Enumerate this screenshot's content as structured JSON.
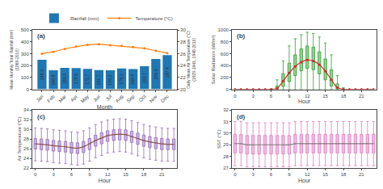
{
  "chart_data": [
    {
      "type": "bar",
      "xlabel": "Month",
      "ylabel": "Mean Monthly Total Rainfall (mm)\n(1869-2010)",
      "y2label": "Daily Mean Air Temperature (°C)\n(1929-1941, 1948-2010)",
      "annotations": [
        {
          "text": "(a)"
        }
      ],
      "categories": [
        "Jan",
        "Feb",
        "Mar",
        "Apr",
        "May",
        "Jun",
        "Jul",
        "Aug",
        "Sep",
        "Oct",
        "Nov",
        "Dec"
      ],
      "series": [
        {
          "name": "Rainfall (mm)",
          "type": "bar",
          "data_labels": true,
          "values": [
            248.3,
            160.8,
            180.3,
            178.6,
            171.7,
            161.7,
            159.3,
            176.1,
            169.4,
            193.7,
            255.9,
            287.4
          ]
        },
        {
          "name": "Temperature (°C)",
          "type": "line",
          "marker": "circle",
          "axis": "y2",
          "values": [
            26.0,
            26.3,
            26.8,
            27.2,
            27.5,
            27.6,
            27.4,
            27.3,
            27.1,
            26.9,
            26.5,
            26.1
          ]
        }
      ],
      "ylim": [
        0,
        500
      ],
      "yticks": [
        0,
        100,
        200,
        300,
        400,
        500
      ],
      "y2lim": [
        20,
        30
      ],
      "y2ticks": [
        20,
        22,
        24,
        26,
        28,
        30
      ],
      "grid": false,
      "legend": "upper right"
    },
    {
      "type": "box",
      "xlabel": "Hour",
      "ylabel": "Solar Radiation (W/m²)",
      "annotations": [
        {
          "text": "(b)"
        }
      ],
      "x": [
        0,
        1,
        2,
        3,
        4,
        5,
        6,
        7,
        8,
        9,
        10,
        11,
        12,
        13,
        14,
        15,
        16,
        17,
        18,
        19,
        20,
        21,
        22,
        23
      ],
      "series": [
        {
          "type": "box",
          "median": [
            0,
            0,
            0,
            0,
            0,
            0,
            0,
            15,
            130,
            270,
            380,
            450,
            490,
            470,
            410,
            300,
            150,
            20,
            0,
            0,
            0,
            0,
            0,
            0
          ],
          "q1": [
            0,
            0,
            0,
            0,
            0,
            0,
            0,
            2,
            50,
            130,
            230,
            310,
            350,
            330,
            260,
            160,
            55,
            5,
            0,
            0,
            0,
            0,
            0,
            0
          ],
          "q3": [
            0,
            0,
            0,
            0,
            0,
            0,
            0,
            55,
            260,
            440,
            580,
            680,
            730,
            710,
            630,
            510,
            330,
            90,
            3,
            0,
            0,
            0,
            0,
            0
          ],
          "whislo": [
            0,
            0,
            0,
            0,
            0,
            0,
            0,
            0,
            0,
            0,
            0,
            0,
            0,
            0,
            0,
            0,
            0,
            0,
            0,
            0,
            0,
            0,
            0,
            0
          ],
          "whishi": [
            0,
            0,
            0,
            0,
            0,
            0,
            3,
            160,
            480,
            730,
            850,
            920,
            960,
            940,
            880,
            780,
            580,
            230,
            25,
            0,
            0,
            0,
            0,
            0
          ]
        },
        {
          "type": "line",
          "marker": "circle",
          "values": [
            0,
            0,
            0,
            0,
            0,
            0,
            1,
            18,
            140,
            275,
            385,
            455,
            495,
            475,
            415,
            305,
            160,
            28,
            1,
            0,
            0,
            0,
            0,
            0
          ]
        }
      ],
      "xlim": [
        -0.5,
        23.5
      ],
      "xticks": [
        0,
        3,
        6,
        9,
        12,
        15,
        18,
        21
      ],
      "ylim": [
        0,
        1000
      ],
      "yticks": [
        0,
        200,
        400,
        600,
        800,
        1000
      ],
      "grid": false
    },
    {
      "type": "box",
      "xlabel": "Hour",
      "ylabel": "Air Temperature (°C)",
      "annotations": [
        {
          "text": "(c)"
        }
      ],
      "x": [
        0,
        1,
        2,
        3,
        4,
        5,
        6,
        7,
        8,
        9,
        10,
        11,
        12,
        13,
        14,
        15,
        16,
        17,
        18,
        19,
        20,
        21,
        22,
        23
      ],
      "series": [
        {
          "type": "box",
          "median": [
            27.0,
            26.9,
            26.8,
            26.6,
            26.5,
            26.4,
            26.2,
            26.1,
            26.4,
            27.0,
            27.7,
            28.2,
            28.7,
            28.9,
            29.0,
            28.9,
            28.5,
            28.1,
            27.7,
            27.4,
            27.2,
            27.0,
            26.9,
            26.9
          ],
          "q1": [
            25.9,
            25.8,
            25.7,
            25.5,
            25.4,
            25.3,
            25.1,
            25.0,
            25.2,
            25.8,
            26.5,
            27.0,
            27.5,
            27.7,
            27.8,
            27.7,
            27.3,
            26.9,
            26.5,
            26.2,
            26.0,
            25.8,
            25.8,
            25.8
          ],
          "q3": [
            28.1,
            28.0,
            27.9,
            27.7,
            27.6,
            27.5,
            27.3,
            27.2,
            27.5,
            28.1,
            28.8,
            29.3,
            29.7,
            29.9,
            30.0,
            29.9,
            29.6,
            29.2,
            28.8,
            28.5,
            28.3,
            28.1,
            28.0,
            28.0
          ],
          "whislo": [
            23.5,
            23.4,
            23.3,
            23.1,
            23.0,
            22.9,
            22.7,
            22.6,
            22.8,
            23.4,
            24.1,
            24.6,
            25.1,
            25.3,
            25.4,
            25.3,
            24.9,
            24.5,
            24.1,
            23.8,
            23.6,
            23.4,
            23.4,
            23.4
          ],
          "whishi": [
            30.3,
            30.2,
            30.1,
            29.9,
            29.8,
            29.7,
            29.5,
            29.4,
            29.7,
            30.3,
            31.0,
            31.5,
            31.9,
            32.1,
            32.2,
            32.1,
            31.8,
            31.4,
            31.0,
            30.7,
            30.5,
            30.3,
            30.2,
            30.2
          ]
        },
        {
          "type": "line",
          "values": [
            27.0,
            26.9,
            26.8,
            26.6,
            26.5,
            26.4,
            26.2,
            26.1,
            26.4,
            27.0,
            27.7,
            28.2,
            28.7,
            28.9,
            29.0,
            28.9,
            28.5,
            28.1,
            27.7,
            27.4,
            27.2,
            27.0,
            26.9,
            26.9
          ]
        }
      ],
      "xlim": [
        -0.5,
        23.5
      ],
      "xticks": [
        0,
        3,
        6,
        9,
        12,
        15,
        18,
        21
      ],
      "ylim": [
        22,
        34
      ],
      "yticks": [
        22,
        24,
        26,
        28,
        30,
        32,
        34
      ],
      "grid": false
    },
    {
      "type": "box",
      "xlabel": "Hour",
      "ylabel": "SST (°C)",
      "annotations": [
        {
          "text": "(d)"
        }
      ],
      "x": [
        0,
        1,
        2,
        3,
        4,
        5,
        6,
        7,
        8,
        9,
        10,
        11,
        12,
        13,
        14,
        15,
        16,
        17,
        18,
        19,
        20,
        21,
        22,
        23
      ],
      "series": [
        {
          "type": "box",
          "median": [
            29.1,
            29.1,
            29.0,
            29.0,
            29.0,
            29.0,
            29.0,
            29.0,
            29.0,
            29.0,
            29.1,
            29.1,
            29.1,
            29.1,
            29.1,
            29.1,
            29.1,
            29.1,
            29.1,
            29.1,
            29.1,
            29.1,
            29.1,
            29.1
          ],
          "q1": [
            28.3,
            28.3,
            28.2,
            28.2,
            28.2,
            28.2,
            28.2,
            28.2,
            28.2,
            28.2,
            28.3,
            28.3,
            28.3,
            28.3,
            28.3,
            28.3,
            28.3,
            28.3,
            28.3,
            28.3,
            28.3,
            28.3,
            28.3,
            28.3
          ],
          "q3": [
            29.9,
            29.9,
            29.8,
            29.8,
            29.8,
            29.8,
            29.8,
            29.8,
            29.8,
            29.8,
            29.9,
            29.9,
            29.9,
            29.9,
            29.9,
            29.9,
            29.9,
            29.9,
            29.9,
            29.9,
            29.9,
            29.9,
            29.9,
            29.9
          ],
          "whislo": [
            27.2,
            27.2,
            27.1,
            27.1,
            27.1,
            27.1,
            27.1,
            27.1,
            27.1,
            27.1,
            27.2,
            27.2,
            27.2,
            27.2,
            27.2,
            27.2,
            27.2,
            27.2,
            27.2,
            27.2,
            27.2,
            27.2,
            27.2,
            27.2
          ],
          "whishi": [
            31.0,
            31.0,
            30.9,
            30.9,
            30.9,
            30.9,
            30.9,
            30.9,
            30.9,
            30.9,
            31.0,
            31.0,
            31.0,
            31.0,
            31.0,
            31.0,
            31.0,
            31.0,
            31.0,
            31.0,
            31.0,
            31.0,
            31.0,
            31.0
          ]
        },
        {
          "type": "line",
          "values": [
            29.1,
            29.1,
            29.0,
            29.0,
            29.0,
            29.0,
            29.0,
            29.0,
            29.0,
            29.0,
            29.1,
            29.1,
            29.1,
            29.1,
            29.1,
            29.1,
            29.1,
            29.1,
            29.1,
            29.1,
            29.1,
            29.1,
            29.1,
            29.1
          ]
        }
      ],
      "xlim": [
        -0.5,
        23.5
      ],
      "xticks": [
        0,
        3,
        6,
        9,
        12,
        15,
        18,
        21
      ],
      "ylim": [
        27,
        32
      ],
      "yticks": [
        27,
        28,
        29,
        30,
        31,
        32
      ],
      "grid": false
    }
  ]
}
